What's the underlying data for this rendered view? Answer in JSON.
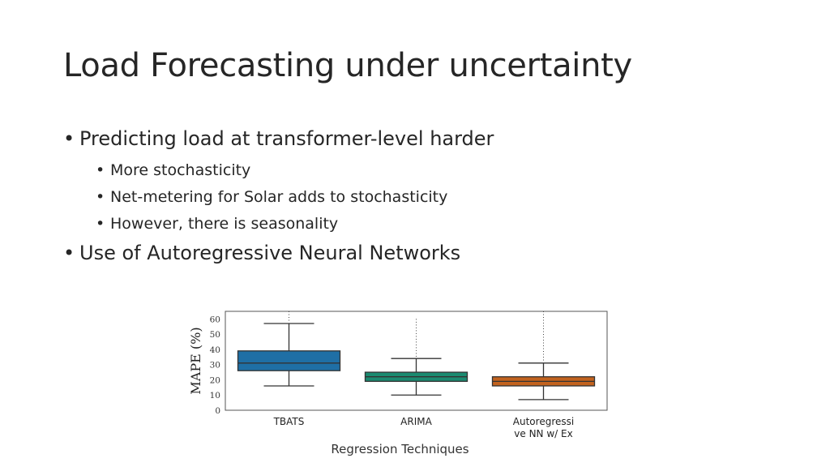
{
  "slide": {
    "title": "Load Forecasting under uncertainty",
    "bullets": [
      {
        "text": "Predicting load at transformer-level harder",
        "sub": [
          "More stochasticity",
          "Net-metering for Solar adds to stochasticity",
          "However, there is seasonality"
        ]
      },
      {
        "text": "Use of Autoregressive Neural Networks"
      }
    ],
    "bullet_glyph": "•"
  },
  "chart_data": {
    "type": "box",
    "ylabel": "MAPE (%)",
    "xlabel": "Regression Techniques",
    "ylim": [
      0,
      65
    ],
    "yticks": [
      0,
      10,
      20,
      30,
      40,
      50,
      60
    ],
    "categories": [
      {
        "name": [
          "TBATS"
        ],
        "whisker_low": 16,
        "q1": 26,
        "median": 31,
        "q3": 39,
        "whisker_high": 57,
        "flier_max": 65,
        "color": "#1f6fa5"
      },
      {
        "name": [
          "ARIMA"
        ],
        "whisker_low": 10,
        "q1": 19,
        "median": 22,
        "q3": 25,
        "whisker_high": 34,
        "flier_max": 60,
        "color": "#1a8a70"
      },
      {
        "name": [
          "Autoregressi",
          "ve NN w/ Ex"
        ],
        "whisker_low": 7,
        "q1": 16,
        "median": 19,
        "q3": 22,
        "whisker_high": 31,
        "flier_max": 65,
        "color": "#c2621e"
      }
    ]
  }
}
